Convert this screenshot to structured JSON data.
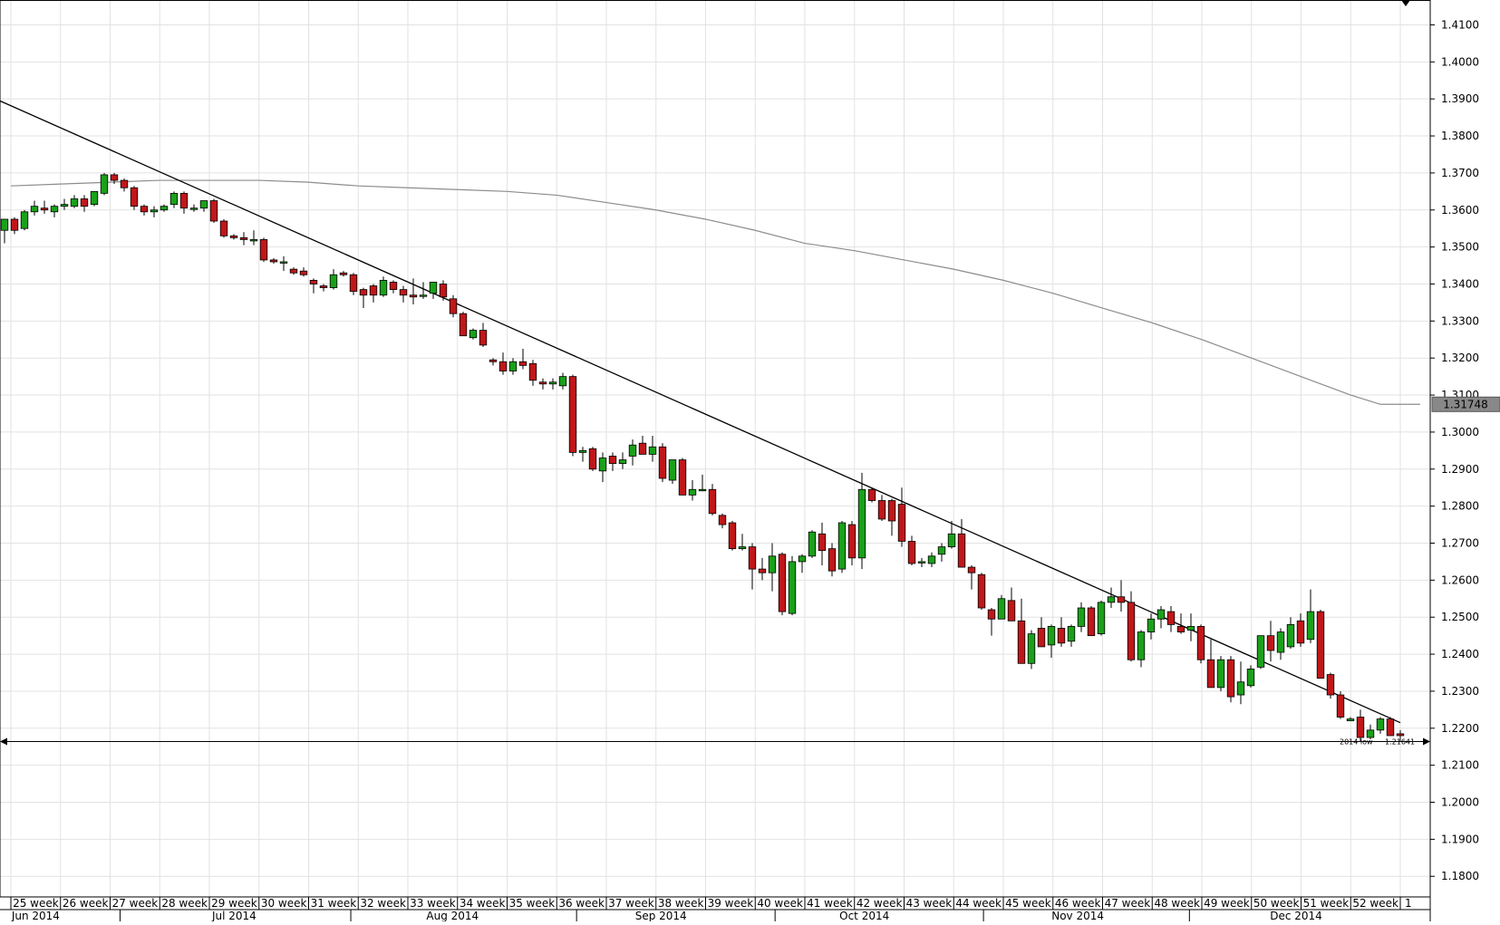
{
  "chart_data": {
    "type": "candlestick",
    "title": "",
    "xlabel": "",
    "ylabel": "",
    "ylim": [
      1.17,
      1.415
    ],
    "y_ticks": [
      "1.1800",
      "1.1900",
      "1.2000",
      "1.2100",
      "1.2200",
      "1.2300",
      "1.2400",
      "1.2500",
      "1.2600",
      "1.2700",
      "1.2800",
      "1.2900",
      "1.3000",
      "1.3100",
      "1.3200",
      "1.3300",
      "1.3400",
      "1.3500",
      "1.3600",
      "1.3700",
      "1.3800",
      "1.3900",
      "1.4000",
      "1.4100"
    ],
    "week_labels": [
      "25 week",
      "26 week",
      "27 week",
      "28 week",
      "29 week",
      "30 week",
      "31 week",
      "32 week",
      "33 week",
      "34 week",
      "35 week",
      "36 week",
      "37 week",
      "38 week",
      "39 week",
      "40 week",
      "41 week",
      "42 week",
      "43 week",
      "44 week",
      "45 week",
      "46 week",
      "47 week",
      "48 week",
      "49 week",
      "50 week",
      "51 week",
      "52 week",
      "1"
    ],
    "month_labels": [
      {
        "label": "Jun 2014",
        "week_index": 0.5
      },
      {
        "label": "Jul 2014",
        "week_index": 4.5
      },
      {
        "label": "Aug 2014",
        "week_index": 8.9
      },
      {
        "label": "Sep 2014",
        "week_index": 13.1
      },
      {
        "label": "Oct 2014",
        "week_index": 17.2
      },
      {
        "label": "Nov 2014",
        "week_index": 21.5
      },
      {
        "label": "Dec 2014",
        "week_index": 25.9
      }
    ],
    "month_separators_week_index": [
      2.2,
      6.85,
      11.4,
      15.4,
      19.6,
      23.75
    ],
    "candles": [
      {
        "o": 1.3545,
        "h": 1.3575,
        "l": 1.351,
        "c": 1.3575
      },
      {
        "o": 1.3575,
        "h": 1.358,
        "l": 1.3535,
        "c": 1.3545
      },
      {
        "o": 1.355,
        "h": 1.36,
        "l": 1.3545,
        "c": 1.3595
      },
      {
        "o": 1.3595,
        "h": 1.3625,
        "l": 1.3585,
        "c": 1.361
      },
      {
        "o": 1.3605,
        "h": 1.3625,
        "l": 1.359,
        "c": 1.36
      },
      {
        "o": 1.3595,
        "h": 1.3615,
        "l": 1.358,
        "c": 1.361
      },
      {
        "o": 1.361,
        "h": 1.363,
        "l": 1.36,
        "c": 1.3615
      },
      {
        "o": 1.361,
        "h": 1.364,
        "l": 1.3605,
        "c": 1.363
      },
      {
        "o": 1.363,
        "h": 1.364,
        "l": 1.3595,
        "c": 1.361
      },
      {
        "o": 1.3615,
        "h": 1.365,
        "l": 1.361,
        "c": 1.365
      },
      {
        "o": 1.3645,
        "h": 1.37,
        "l": 1.364,
        "c": 1.3695
      },
      {
        "o": 1.3695,
        "h": 1.37,
        "l": 1.367,
        "c": 1.368
      },
      {
        "o": 1.368,
        "h": 1.3685,
        "l": 1.365,
        "c": 1.366
      },
      {
        "o": 1.366,
        "h": 1.3665,
        "l": 1.36,
        "c": 1.361
      },
      {
        "o": 1.361,
        "h": 1.3615,
        "l": 1.3585,
        "c": 1.3595
      },
      {
        "o": 1.3595,
        "h": 1.361,
        "l": 1.358,
        "c": 1.36
      },
      {
        "o": 1.36,
        "h": 1.3615,
        "l": 1.3595,
        "c": 1.361
      },
      {
        "o": 1.3615,
        "h": 1.365,
        "l": 1.3605,
        "c": 1.3645
      },
      {
        "o": 1.3645,
        "h": 1.365,
        "l": 1.359,
        "c": 1.3605
      },
      {
        "o": 1.3605,
        "h": 1.3615,
        "l": 1.3595,
        "c": 1.3605
      },
      {
        "o": 1.3605,
        "h": 1.3625,
        "l": 1.3595,
        "c": 1.3625
      },
      {
        "o": 1.3625,
        "h": 1.363,
        "l": 1.3565,
        "c": 1.357
      },
      {
        "o": 1.357,
        "h": 1.3575,
        "l": 1.3525,
        "c": 1.353
      },
      {
        "o": 1.353,
        "h": 1.3535,
        "l": 1.352,
        "c": 1.3525
      },
      {
        "o": 1.3525,
        "h": 1.354,
        "l": 1.3505,
        "c": 1.352
      },
      {
        "o": 1.352,
        "h": 1.3545,
        "l": 1.3505,
        "c": 1.352
      },
      {
        "o": 1.352,
        "h": 1.3525,
        "l": 1.346,
        "c": 1.3465
      },
      {
        "o": 1.3465,
        "h": 1.347,
        "l": 1.3455,
        "c": 1.346
      },
      {
        "o": 1.346,
        "h": 1.3475,
        "l": 1.3435,
        "c": 1.346
      },
      {
        "o": 1.344,
        "h": 1.3445,
        "l": 1.3425,
        "c": 1.343
      },
      {
        "o": 1.3435,
        "h": 1.3445,
        "l": 1.342,
        "c": 1.3425
      },
      {
        "o": 1.341,
        "h": 1.3415,
        "l": 1.3375,
        "c": 1.34
      },
      {
        "o": 1.3395,
        "h": 1.34,
        "l": 1.338,
        "c": 1.339
      },
      {
        "o": 1.339,
        "h": 1.344,
        "l": 1.3385,
        "c": 1.3425
      },
      {
        "o": 1.343,
        "h": 1.3435,
        "l": 1.342,
        "c": 1.3425
      },
      {
        "o": 1.3425,
        "h": 1.343,
        "l": 1.337,
        "c": 1.338
      },
      {
        "o": 1.3385,
        "h": 1.339,
        "l": 1.3335,
        "c": 1.337
      },
      {
        "o": 1.3395,
        "h": 1.34,
        "l": 1.335,
        "c": 1.337
      },
      {
        "o": 1.337,
        "h": 1.342,
        "l": 1.3365,
        "c": 1.341
      },
      {
        "o": 1.3405,
        "h": 1.341,
        "l": 1.3375,
        "c": 1.3385
      },
      {
        "o": 1.3385,
        "h": 1.3395,
        "l": 1.335,
        "c": 1.337
      },
      {
        "o": 1.337,
        "h": 1.3415,
        "l": 1.3345,
        "c": 1.3365
      },
      {
        "o": 1.337,
        "h": 1.3405,
        "l": 1.336,
        "c": 1.337
      },
      {
        "o": 1.3375,
        "h": 1.3405,
        "l": 1.336,
        "c": 1.3405
      },
      {
        "o": 1.34,
        "h": 1.341,
        "l": 1.3355,
        "c": 1.3365
      },
      {
        "o": 1.336,
        "h": 1.337,
        "l": 1.331,
        "c": 1.332
      },
      {
        "o": 1.332,
        "h": 1.3325,
        "l": 1.326,
        "c": 1.326
      },
      {
        "o": 1.3255,
        "h": 1.328,
        "l": 1.325,
        "c": 1.3275
      },
      {
        "o": 1.3275,
        "h": 1.3295,
        "l": 1.323,
        "c": 1.3235
      },
      {
        "o": 1.3195,
        "h": 1.32,
        "l": 1.318,
        "c": 1.319
      },
      {
        "o": 1.319,
        "h": 1.3215,
        "l": 1.3155,
        "c": 1.3165
      },
      {
        "o": 1.3165,
        "h": 1.32,
        "l": 1.3155,
        "c": 1.319
      },
      {
        "o": 1.319,
        "h": 1.3225,
        "l": 1.317,
        "c": 1.318
      },
      {
        "o": 1.3185,
        "h": 1.3195,
        "l": 1.3125,
        "c": 1.314
      },
      {
        "o": 1.3135,
        "h": 1.3145,
        "l": 1.3115,
        "c": 1.313
      },
      {
        "o": 1.313,
        "h": 1.3145,
        "l": 1.3115,
        "c": 1.3135
      },
      {
        "o": 1.3125,
        "h": 1.316,
        "l": 1.3115,
        "c": 1.315
      },
      {
        "o": 1.315,
        "h": 1.3155,
        "l": 1.2935,
        "c": 1.2945
      },
      {
        "o": 1.2945,
        "h": 1.296,
        "l": 1.292,
        "c": 1.295
      },
      {
        "o": 1.2955,
        "h": 1.296,
        "l": 1.2895,
        "c": 1.29
      },
      {
        "o": 1.2895,
        "h": 1.2945,
        "l": 1.2865,
        "c": 1.293
      },
      {
        "o": 1.2935,
        "h": 1.2945,
        "l": 1.2895,
        "c": 1.2915
      },
      {
        "o": 1.2915,
        "h": 1.2945,
        "l": 1.29,
        "c": 1.2925
      },
      {
        "o": 1.2935,
        "h": 1.298,
        "l": 1.291,
        "c": 1.2965
      },
      {
        "o": 1.297,
        "h": 1.299,
        "l": 1.294,
        "c": 1.294
      },
      {
        "o": 1.294,
        "h": 1.299,
        "l": 1.292,
        "c": 1.296
      },
      {
        "o": 1.296,
        "h": 1.297,
        "l": 1.2865,
        "c": 1.2875
      },
      {
        "o": 1.287,
        "h": 1.2925,
        "l": 1.286,
        "c": 1.2925
      },
      {
        "o": 1.2925,
        "h": 1.293,
        "l": 1.283,
        "c": 1.283
      },
      {
        "o": 1.283,
        "h": 1.287,
        "l": 1.2815,
        "c": 1.2845
      },
      {
        "o": 1.2845,
        "h": 1.2885,
        "l": 1.284,
        "c": 1.2845
      },
      {
        "o": 1.2845,
        "h": 1.286,
        "l": 1.2775,
        "c": 1.278
      },
      {
        "o": 1.2775,
        "h": 1.278,
        "l": 1.274,
        "c": 1.275
      },
      {
        "o": 1.2755,
        "h": 1.276,
        "l": 1.268,
        "c": 1.2685
      },
      {
        "o": 1.2685,
        "h": 1.2725,
        "l": 1.268,
        "c": 1.269
      },
      {
        "o": 1.269,
        "h": 1.27,
        "l": 1.2575,
        "c": 1.263
      },
      {
        "o": 1.263,
        "h": 1.266,
        "l": 1.26,
        "c": 1.262
      },
      {
        "o": 1.262,
        "h": 1.27,
        "l": 1.257,
        "c": 1.2665
      },
      {
        "o": 1.267,
        "h": 1.2675,
        "l": 1.2505,
        "c": 1.2515
      },
      {
        "o": 1.251,
        "h": 1.2665,
        "l": 1.2505,
        "c": 1.265
      },
      {
        "o": 1.265,
        "h": 1.267,
        "l": 1.262,
        "c": 1.2665
      },
      {
        "o": 1.2665,
        "h": 1.2735,
        "l": 1.266,
        "c": 1.273
      },
      {
        "o": 1.2725,
        "h": 1.2755,
        "l": 1.264,
        "c": 1.268
      },
      {
        "o": 1.2685,
        "h": 1.27,
        "l": 1.261,
        "c": 1.2625
      },
      {
        "o": 1.263,
        "h": 1.276,
        "l": 1.262,
        "c": 1.2755
      },
      {
        "o": 1.275,
        "h": 1.276,
        "l": 1.264,
        "c": 1.266
      },
      {
        "o": 1.266,
        "h": 1.289,
        "l": 1.263,
        "c": 1.2845
      },
      {
        "o": 1.2845,
        "h": 1.285,
        "l": 1.281,
        "c": 1.2815
      },
      {
        "o": 1.2815,
        "h": 1.283,
        "l": 1.276,
        "c": 1.2765
      },
      {
        "o": 1.2815,
        "h": 1.282,
        "l": 1.272,
        "c": 1.276
      },
      {
        "o": 1.2805,
        "h": 1.285,
        "l": 1.269,
        "c": 1.2705
      },
      {
        "o": 1.2705,
        "h": 1.272,
        "l": 1.264,
        "c": 1.2645
      },
      {
        "o": 1.265,
        "h": 1.266,
        "l": 1.2635,
        "c": 1.265
      },
      {
        "o": 1.2645,
        "h": 1.2675,
        "l": 1.2635,
        "c": 1.2665
      },
      {
        "o": 1.267,
        "h": 1.27,
        "l": 1.265,
        "c": 1.269
      },
      {
        "o": 1.269,
        "h": 1.276,
        "l": 1.2685,
        "c": 1.2725
      },
      {
        "o": 1.2725,
        "h": 1.2765,
        "l": 1.2635,
        "c": 1.2635
      },
      {
        "o": 1.2635,
        "h": 1.264,
        "l": 1.2575,
        "c": 1.262
      },
      {
        "o": 1.2615,
        "h": 1.262,
        "l": 1.252,
        "c": 1.2525
      },
      {
        "o": 1.252,
        "h": 1.2525,
        "l": 1.245,
        "c": 1.2495
      },
      {
        "o": 1.2495,
        "h": 1.256,
        "l": 1.2495,
        "c": 1.255
      },
      {
        "o": 1.2545,
        "h": 1.258,
        "l": 1.249,
        "c": 1.249
      },
      {
        "o": 1.249,
        "h": 1.255,
        "l": 1.238,
        "c": 1.2375
      },
      {
        "o": 1.2375,
        "h": 1.2465,
        "l": 1.236,
        "c": 1.2455
      },
      {
        "o": 1.247,
        "h": 1.25,
        "l": 1.242,
        "c": 1.242
      },
      {
        "o": 1.2425,
        "h": 1.248,
        "l": 1.239,
        "c": 1.2475
      },
      {
        "o": 1.247,
        "h": 1.25,
        "l": 1.242,
        "c": 1.243
      },
      {
        "o": 1.2435,
        "h": 1.248,
        "l": 1.242,
        "c": 1.2475
      },
      {
        "o": 1.2475,
        "h": 1.254,
        "l": 1.246,
        "c": 1.2525
      },
      {
        "o": 1.2525,
        "h": 1.253,
        "l": 1.245,
        "c": 1.245
      },
      {
        "o": 1.2455,
        "h": 1.2545,
        "l": 1.245,
        "c": 1.254
      },
      {
        "o": 1.254,
        "h": 1.258,
        "l": 1.2525,
        "c": 1.2555
      },
      {
        "o": 1.2555,
        "h": 1.26,
        "l": 1.2515,
        "c": 1.254
      },
      {
        "o": 1.254,
        "h": 1.257,
        "l": 1.238,
        "c": 1.2385
      },
      {
        "o": 1.2385,
        "h": 1.2465,
        "l": 1.2365,
        "c": 1.246
      },
      {
        "o": 1.246,
        "h": 1.251,
        "l": 1.244,
        "c": 1.2495
      },
      {
        "o": 1.2495,
        "h": 1.253,
        "l": 1.247,
        "c": 1.252
      },
      {
        "o": 1.2515,
        "h": 1.253,
        "l": 1.246,
        "c": 1.248
      },
      {
        "o": 1.2475,
        "h": 1.251,
        "l": 1.2455,
        "c": 1.246
      },
      {
        "o": 1.2465,
        "h": 1.251,
        "l": 1.2435,
        "c": 1.2475
      },
      {
        "o": 1.2475,
        "h": 1.248,
        "l": 1.2375,
        "c": 1.2385
      },
      {
        "o": 1.2385,
        "h": 1.244,
        "l": 1.231,
        "c": 1.231
      },
      {
        "o": 1.231,
        "h": 1.2395,
        "l": 1.23,
        "c": 1.2385
      },
      {
        "o": 1.2385,
        "h": 1.2395,
        "l": 1.227,
        "c": 1.2285
      },
      {
        "o": 1.229,
        "h": 1.238,
        "l": 1.2265,
        "c": 1.2325
      },
      {
        "o": 1.2315,
        "h": 1.237,
        "l": 1.231,
        "c": 1.236
      },
      {
        "o": 1.2365,
        "h": 1.245,
        "l": 1.236,
        "c": 1.245
      },
      {
        "o": 1.245,
        "h": 1.249,
        "l": 1.238,
        "c": 1.241
      },
      {
        "o": 1.2405,
        "h": 1.247,
        "l": 1.2385,
        "c": 1.246
      },
      {
        "o": 1.242,
        "h": 1.25,
        "l": 1.2415,
        "c": 1.248
      },
      {
        "o": 1.249,
        "h": 1.251,
        "l": 1.242,
        "c": 1.243
      },
      {
        "o": 1.244,
        "h": 1.2575,
        "l": 1.243,
        "c": 1.2515
      },
      {
        "o": 1.2515,
        "h": 1.252,
        "l": 1.2335,
        "c": 1.2335
      },
      {
        "o": 1.2345,
        "h": 1.235,
        "l": 1.228,
        "c": 1.229
      },
      {
        "o": 1.229,
        "h": 1.23,
        "l": 1.2225,
        "c": 1.223
      },
      {
        "o": 1.222,
        "h": 1.223,
        "l": 1.222,
        "c": 1.2225
      },
      {
        "o": 1.223,
        "h": 1.225,
        "l": 1.2165,
        "c": 1.2175
      },
      {
        "o": 1.2175,
        "h": 1.221,
        "l": 1.217,
        "c": 1.2195
      },
      {
        "o": 1.2195,
        "h": 1.223,
        "l": 1.2185,
        "c": 1.2225
      },
      {
        "o": 1.2225,
        "h": 1.223,
        "l": 1.218,
        "c": 1.218
      },
      {
        "o": 1.2185,
        "h": 1.2195,
        "l": 1.2165,
        "c": 1.218
      }
    ],
    "moving_average": [
      {
        "week_index": 0.0,
        "value": 1.3665
      },
      {
        "week_index": 1.0,
        "value": 1.367
      },
      {
        "week_index": 2.0,
        "value": 1.3675
      },
      {
        "week_index": 3.0,
        "value": 1.368
      },
      {
        "week_index": 4.0,
        "value": 1.368
      },
      {
        "week_index": 5.0,
        "value": 1.368
      },
      {
        "week_index": 6.0,
        "value": 1.3675
      },
      {
        "week_index": 7.0,
        "value": 1.3665
      },
      {
        "week_index": 8.0,
        "value": 1.366
      },
      {
        "week_index": 9.0,
        "value": 1.3655
      },
      {
        "week_index": 10.0,
        "value": 1.365
      },
      {
        "week_index": 11.0,
        "value": 1.364
      },
      {
        "week_index": 12.0,
        "value": 1.362
      },
      {
        "week_index": 13.0,
        "value": 1.36
      },
      {
        "week_index": 14.0,
        "value": 1.3575
      },
      {
        "week_index": 15.0,
        "value": 1.3545
      },
      {
        "week_index": 16.0,
        "value": 1.351
      },
      {
        "week_index": 17.0,
        "value": 1.349
      },
      {
        "week_index": 18.0,
        "value": 1.3465
      },
      {
        "week_index": 19.0,
        "value": 1.344
      },
      {
        "week_index": 20.0,
        "value": 1.341
      },
      {
        "week_index": 21.0,
        "value": 1.3375
      },
      {
        "week_index": 22.0,
        "value": 1.3335
      },
      {
        "week_index": 23.0,
        "value": 1.3295
      },
      {
        "week_index": 24.0,
        "value": 1.325
      },
      {
        "week_index": 25.0,
        "value": 1.32
      },
      {
        "week_index": 26.0,
        "value": 1.315
      },
      {
        "week_index": 27.0,
        "value": 1.31
      },
      {
        "week_index": 27.6,
        "value": 1.3075
      },
      {
        "week_index": 28.4,
        "value": 1.3075
      }
    ],
    "trendline": [
      {
        "week_index": -1.15,
        "value": 1.395
      },
      {
        "week_index": 28.0,
        "value": 1.2215
      }
    ],
    "horizontal_line_value": 1.2164,
    "price_label": "1.31748",
    "support_label": "2014 low",
    "support_value_label": "1.21641",
    "colors": {
      "bull": "#1aa11a",
      "bear": "#c0171a",
      "candle_outline": "#000000",
      "grid": "#e2e2e2",
      "moving_average": "#8c8c8c",
      "trendline": "#000000",
      "price_box": "#888888"
    },
    "grid": true,
    "legend": "none"
  }
}
